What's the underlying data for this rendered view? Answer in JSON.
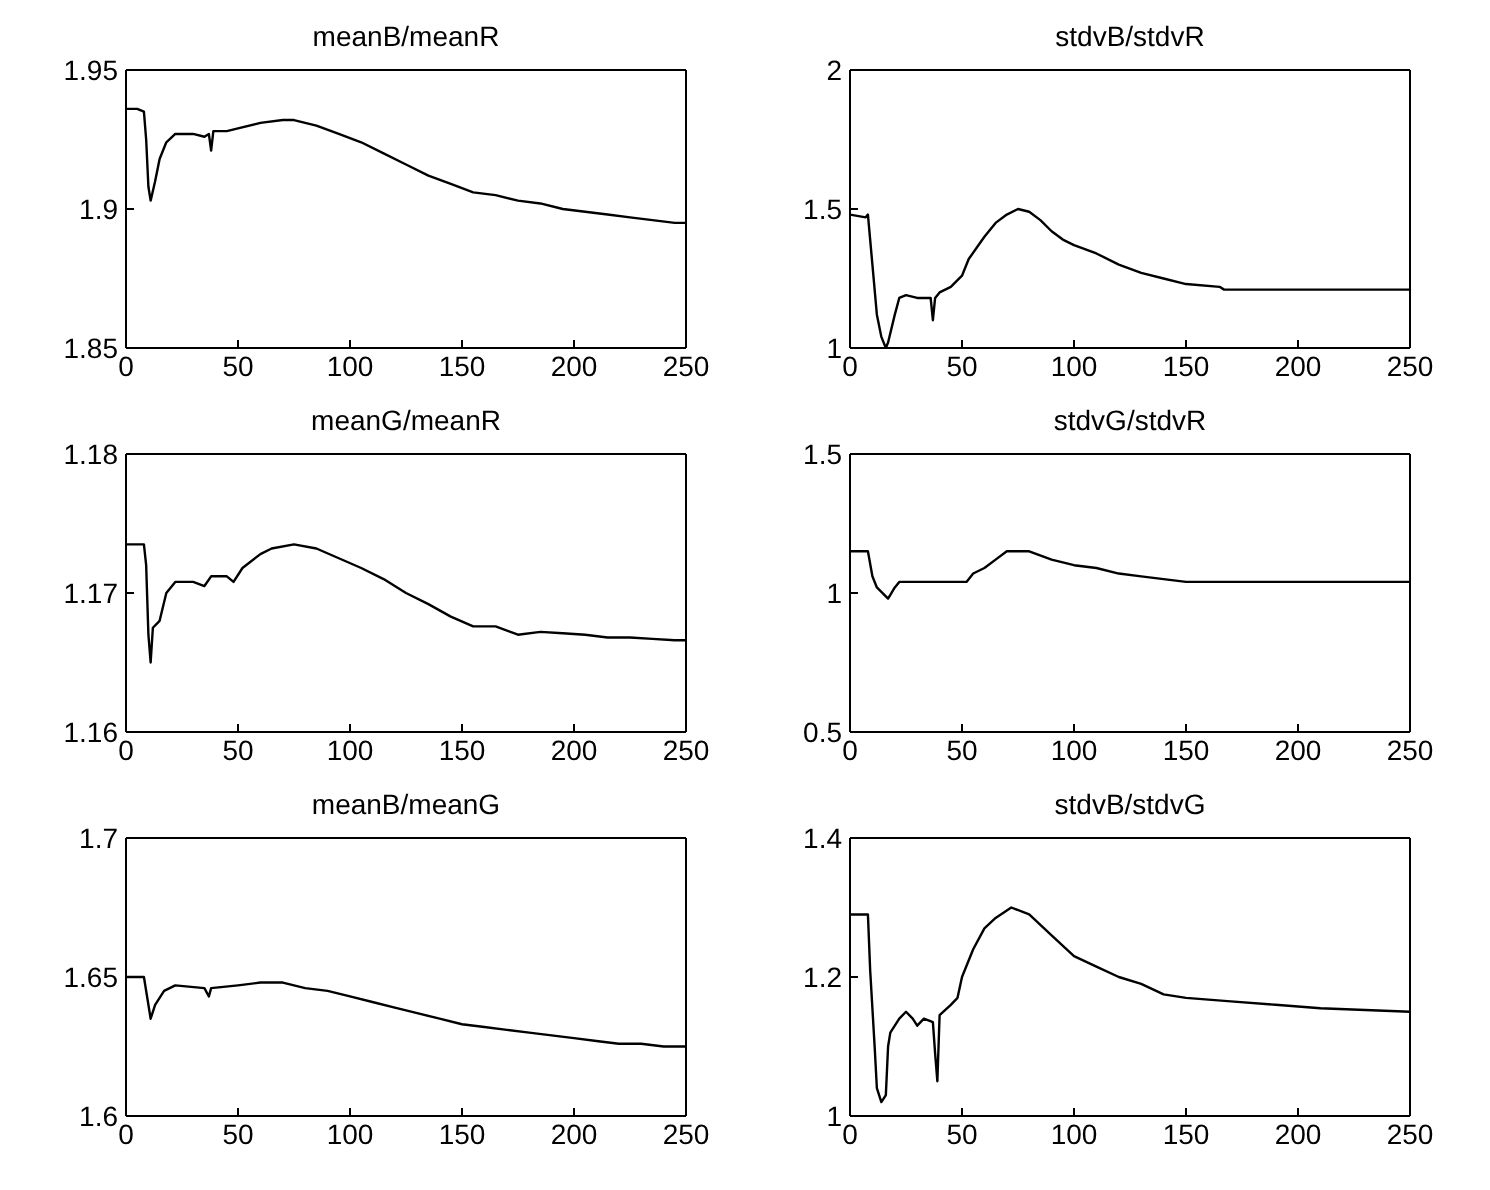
{
  "chart_data": [
    {
      "type": "line",
      "title": "meanB/meanR",
      "color": "#000000",
      "xlim": [
        0,
        250
      ],
      "xticks": [
        0,
        50,
        100,
        150,
        200,
        250
      ],
      "ylim": [
        1.85,
        1.95
      ],
      "yticks": [
        1.85,
        1.9,
        1.95
      ],
      "x": [
        0,
        5,
        8,
        9,
        10,
        11,
        13,
        15,
        18,
        22,
        30,
        35,
        37,
        38,
        39,
        45,
        50,
        60,
        70,
        75,
        85,
        95,
        105,
        115,
        125,
        135,
        145,
        155,
        165,
        175,
        185,
        195,
        205,
        215,
        225,
        235,
        245,
        250
      ],
      "values": [
        1.936,
        1.936,
        1.935,
        1.925,
        1.908,
        1.903,
        1.91,
        1.918,
        1.924,
        1.927,
        1.927,
        1.926,
        1.927,
        1.921,
        1.928,
        1.928,
        1.929,
        1.931,
        1.932,
        1.932,
        1.93,
        1.927,
        1.924,
        1.92,
        1.916,
        1.912,
        1.909,
        1.906,
        1.905,
        1.903,
        1.902,
        1.9,
        1.899,
        1.898,
        1.897,
        1.896,
        1.895,
        1.895
      ]
    },
    {
      "type": "line",
      "title": "stdvB/stdvR",
      "color": "#000000",
      "xlim": [
        0,
        250
      ],
      "xticks": [
        0,
        50,
        100,
        150,
        200,
        250
      ],
      "ylim": [
        1,
        2
      ],
      "yticks": [
        1,
        1.5,
        2
      ],
      "x": [
        0,
        7,
        8,
        10,
        12,
        14,
        16,
        17,
        20,
        22,
        25,
        30,
        36,
        37,
        38,
        40,
        45,
        50,
        53,
        60,
        65,
        70,
        75,
        80,
        85,
        90,
        95,
        100,
        110,
        120,
        130,
        140,
        150,
        165,
        167,
        200,
        250
      ],
      "values": [
        1.48,
        1.47,
        1.48,
        1.3,
        1.12,
        1.04,
        1.0,
        1.02,
        1.12,
        1.18,
        1.19,
        1.18,
        1.18,
        1.1,
        1.18,
        1.2,
        1.22,
        1.26,
        1.32,
        1.4,
        1.45,
        1.48,
        1.5,
        1.49,
        1.46,
        1.42,
        1.39,
        1.37,
        1.34,
        1.3,
        1.27,
        1.25,
        1.23,
        1.22,
        1.21,
        1.21,
        1.21
      ]
    },
    {
      "type": "line",
      "title": "meanG/meanR",
      "color": "#000000",
      "xlim": [
        0,
        250
      ],
      "xticks": [
        0,
        50,
        100,
        150,
        200,
        250
      ],
      "ylim": [
        1.16,
        1.18
      ],
      "yticks": [
        1.16,
        1.17,
        1.18
      ],
      "x": [
        0,
        8,
        9,
        10,
        11,
        12,
        15,
        18,
        22,
        30,
        35,
        38,
        45,
        48,
        52,
        60,
        65,
        75,
        85,
        95,
        105,
        115,
        125,
        135,
        145,
        155,
        165,
        175,
        185,
        195,
        205,
        215,
        225,
        235,
        245,
        250
      ],
      "values": [
        1.1735,
        1.1735,
        1.172,
        1.167,
        1.165,
        1.1675,
        1.168,
        1.17,
        1.1708,
        1.1708,
        1.1705,
        1.1712,
        1.1712,
        1.1708,
        1.1718,
        1.1728,
        1.1732,
        1.1735,
        1.1732,
        1.1725,
        1.1718,
        1.171,
        1.17,
        1.1692,
        1.1683,
        1.1676,
        1.1676,
        1.167,
        1.1672,
        1.1671,
        1.167,
        1.1668,
        1.1668,
        1.1667,
        1.1666,
        1.1666
      ]
    },
    {
      "type": "line",
      "title": "stdvG/stdvR",
      "color": "#000000",
      "xlim": [
        0,
        250
      ],
      "xticks": [
        0,
        50,
        100,
        150,
        200,
        250
      ],
      "ylim": [
        0.5,
        1.5
      ],
      "yticks": [
        0.5,
        1,
        1.5
      ],
      "x": [
        0,
        8,
        10,
        12,
        17,
        20,
        22,
        30,
        45,
        52,
        55,
        60,
        65,
        70,
        80,
        90,
        100,
        110,
        120,
        130,
        150,
        250
      ],
      "values": [
        1.15,
        1.15,
        1.06,
        1.02,
        0.98,
        1.02,
        1.04,
        1.04,
        1.04,
        1.04,
        1.07,
        1.09,
        1.12,
        1.15,
        1.15,
        1.12,
        1.1,
        1.09,
        1.07,
        1.06,
        1.04,
        1.04
      ]
    },
    {
      "type": "line",
      "title": "meanB/meanG",
      "color": "#000000",
      "xlim": [
        0,
        250
      ],
      "xticks": [
        0,
        50,
        100,
        150,
        200,
        250
      ],
      "ylim": [
        1.6,
        1.7
      ],
      "yticks": [
        1.6,
        1.65,
        1.7
      ],
      "x": [
        0,
        8,
        10,
        11,
        13,
        17,
        22,
        35,
        37,
        38,
        50,
        60,
        70,
        80,
        90,
        100,
        110,
        120,
        130,
        140,
        150,
        160,
        170,
        180,
        190,
        200,
        210,
        220,
        230,
        240,
        250
      ],
      "values": [
        1.65,
        1.65,
        1.64,
        1.635,
        1.64,
        1.645,
        1.647,
        1.646,
        1.643,
        1.646,
        1.647,
        1.648,
        1.648,
        1.646,
        1.645,
        1.643,
        1.641,
        1.639,
        1.637,
        1.635,
        1.633,
        1.632,
        1.631,
        1.63,
        1.629,
        1.628,
        1.627,
        1.626,
        1.626,
        1.625,
        1.625
      ]
    },
    {
      "type": "line",
      "title": "stdvB/stdvG",
      "color": "#000000",
      "xlim": [
        0,
        250
      ],
      "xticks": [
        0,
        50,
        100,
        150,
        200,
        250
      ],
      "ylim": [
        1,
        1.4
      ],
      "yticks": [
        1,
        1.2,
        1.4
      ],
      "x": [
        0,
        8,
        9,
        11,
        12,
        14,
        16,
        17,
        18,
        22,
        25,
        28,
        30,
        33,
        37,
        38,
        39,
        40,
        45,
        48,
        50,
        55,
        60,
        65,
        72,
        80,
        90,
        100,
        110,
        120,
        130,
        140,
        150,
        170,
        190,
        210,
        250
      ],
      "values": [
        1.29,
        1.29,
        1.21,
        1.1,
        1.04,
        1.02,
        1.03,
        1.1,
        1.12,
        1.14,
        1.15,
        1.14,
        1.13,
        1.14,
        1.135,
        1.09,
        1.05,
        1.145,
        1.16,
        1.17,
        1.2,
        1.24,
        1.27,
        1.285,
        1.3,
        1.29,
        1.26,
        1.23,
        1.215,
        1.2,
        1.19,
        1.175,
        1.17,
        1.165,
        1.16,
        1.155,
        1.15
      ]
    }
  ]
}
